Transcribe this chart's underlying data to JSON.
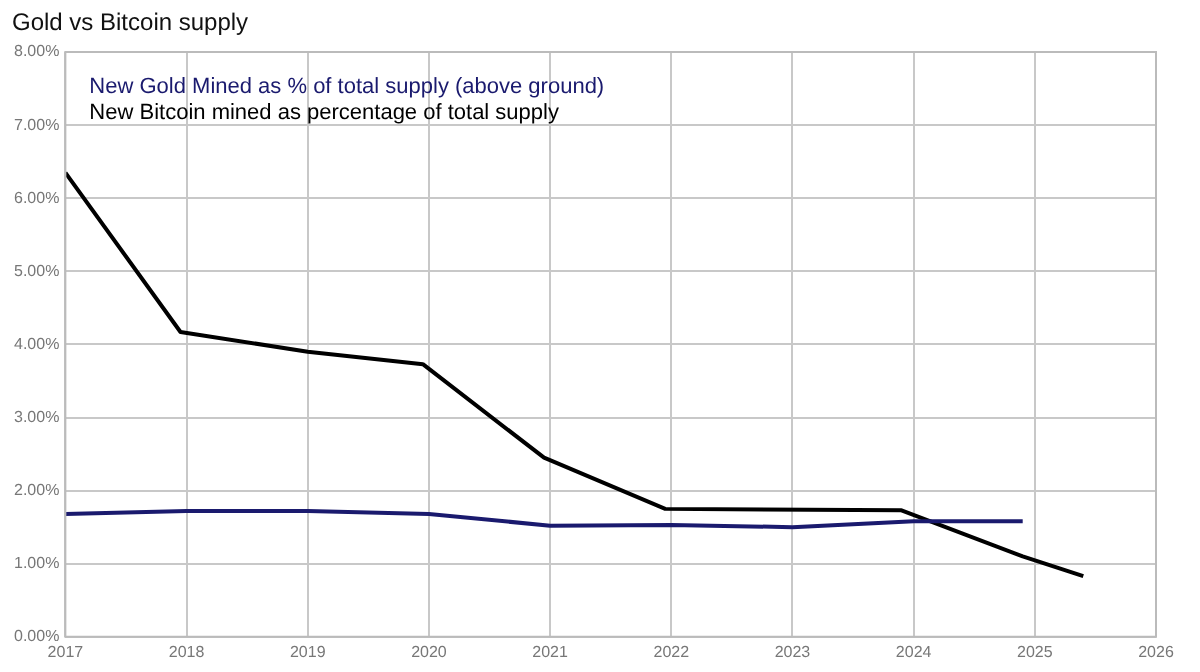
{
  "chart_data": {
    "type": "line",
    "title": "Gold vs Bitcoin supply",
    "xlim": [
      2017,
      2026
    ],
    "xticks": [
      2017,
      2018,
      2019,
      2020,
      2021,
      2022,
      2023,
      2024,
      2025,
      2026
    ],
    "ylim": [
      0,
      8
    ],
    "yticks": [
      {
        "value": 0,
        "label": "0.00%"
      },
      {
        "value": 1,
        "label": "1.00%"
      },
      {
        "value": 2,
        "label": "2.00%"
      },
      {
        "value": 3,
        "label": "3.00%"
      },
      {
        "value": 4,
        "label": "4.00%"
      },
      {
        "value": 5,
        "label": "5.00%"
      },
      {
        "value": 6,
        "label": "6.00%"
      },
      {
        "value": 7,
        "label": "7.00%"
      },
      {
        "value": 8,
        "label": "8.00%"
      }
    ],
    "grid": true,
    "legend": "top left",
    "marker": "none",
    "line_style": "solid",
    "series": [
      {
        "name": "New Gold Mined as % of total supply (above ground)",
        "color": "#1a1a6e",
        "x": [
          2017,
          2018,
          2019,
          2020,
          2021,
          2022,
          2023,
          2024,
          2024.9
        ],
        "values": [
          1.68,
          1.72,
          1.72,
          1.68,
          1.52,
          1.53,
          1.5,
          1.58,
          1.58
        ]
      },
      {
        "name": "New Bitcoin mined as percentage of total supply",
        "color": "#000000",
        "x": [
          2017,
          2017.95,
          2019,
          2019.95,
          2020.95,
          2021.95,
          2023.9,
          2024.9,
          2025.4
        ],
        "values": [
          6.35,
          4.17,
          3.9,
          3.73,
          2.45,
          1.75,
          1.73,
          1.1,
          0.83
        ]
      }
    ]
  }
}
